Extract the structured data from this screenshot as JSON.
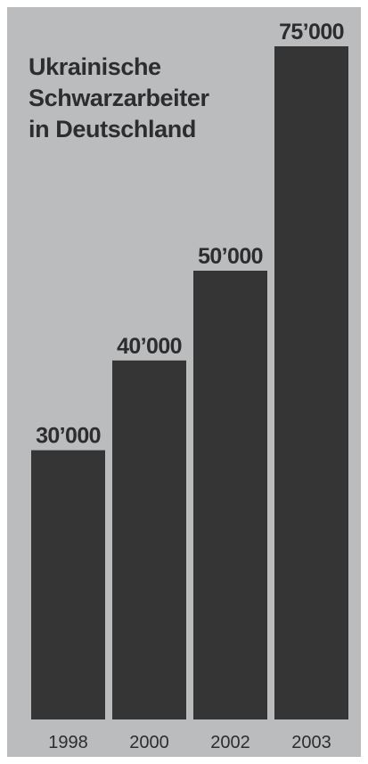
{
  "chart_data": {
    "type": "bar",
    "title_lines": [
      "Ukrainische",
      "Schwarzarbeiter",
      "in Deutschland"
    ],
    "categories": [
      "1998",
      "2000",
      "2002",
      "2003"
    ],
    "values": [
      30000,
      40000,
      50000,
      75000
    ],
    "value_labels": [
      "30’000",
      "40’000",
      "50’000",
      "75’000"
    ],
    "ylim": [
      0,
      75000
    ],
    "grid": false,
    "legend": "none",
    "colors": {
      "background": "#bbbcbe",
      "bar": "#353536",
      "text": "#2d2d2e"
    }
  }
}
